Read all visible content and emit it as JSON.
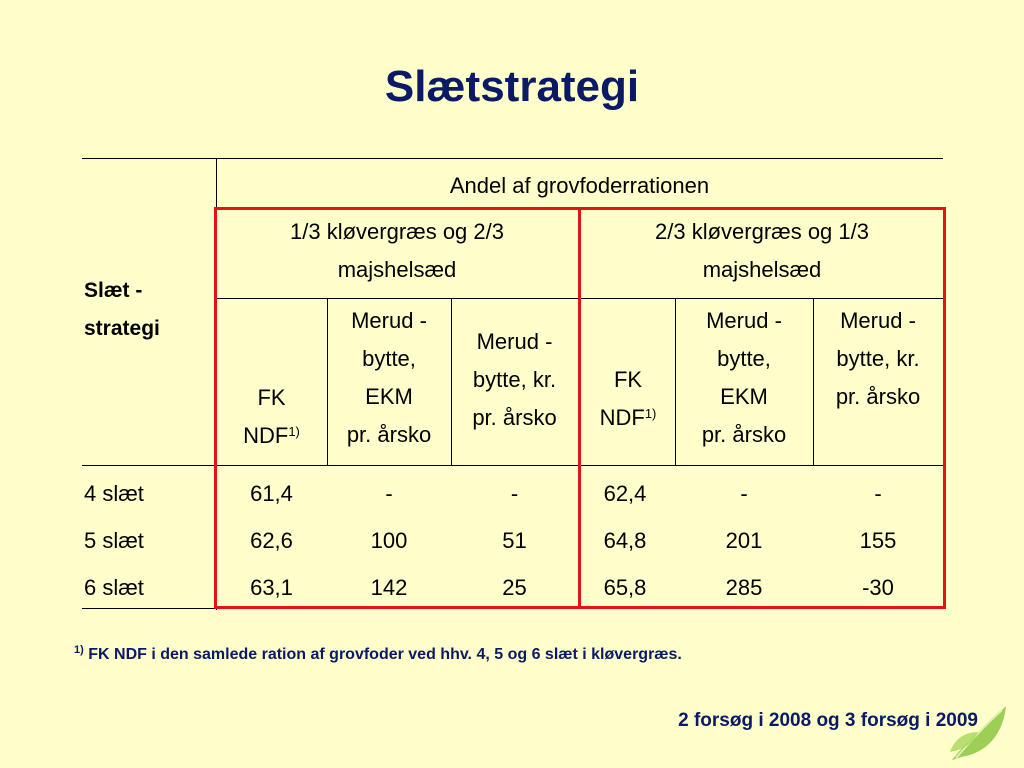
{
  "title": "Slætstrategi",
  "table": {
    "row_header": "Slæt -\nstrategi",
    "super_header": "Andel af grovfoderrationen",
    "groups": [
      "1/3 kløvergræs og 2/3\nmajshelsæd",
      "2/3 kløvergræs og 1/3\nmajshelsæd"
    ],
    "columns": [
      {
        "label": "FK\nNDF",
        "sup": "1)"
      },
      {
        "label": "Merud -\nbytte,\nEKM\npr. årsko"
      },
      {
        "label": "Merud -\nbytte, kr.\npr. årsko"
      },
      {
        "label": "FK\nNDF",
        "sup": "1)"
      },
      {
        "label": "Merud -\nbytte,\nEKM\npr. årsko"
      },
      {
        "label": "Merud -\nbytte,  kr.\npr. årsko"
      }
    ],
    "rows": [
      {
        "label": "4 slæt",
        "cells": [
          "61,4",
          "-",
          "-",
          "62,4",
          "-",
          "-"
        ]
      },
      {
        "label": "5 slæt",
        "cells": [
          "62,6",
          "100",
          "51",
          "64,8",
          "201",
          "155"
        ]
      },
      {
        "label": "6 slæt",
        "cells": [
          "63,1",
          "142",
          "25",
          "65,8",
          "285",
          "-30"
        ]
      }
    ]
  },
  "footnote": {
    "marker": "1)",
    "text": "FK NDF i den samlede ration af grovfoder ved hhv. 4, 5 og 6 slæt i kløvergræs."
  },
  "source_note": "2 forsøg i 2008 og 3 forsøg i 2009",
  "colors": {
    "background": "#ffffcc",
    "title": "#0a1a66",
    "highlight_border": "#e51414",
    "leaf": "#8cc63f"
  },
  "logo_icon": "leaf-icon"
}
